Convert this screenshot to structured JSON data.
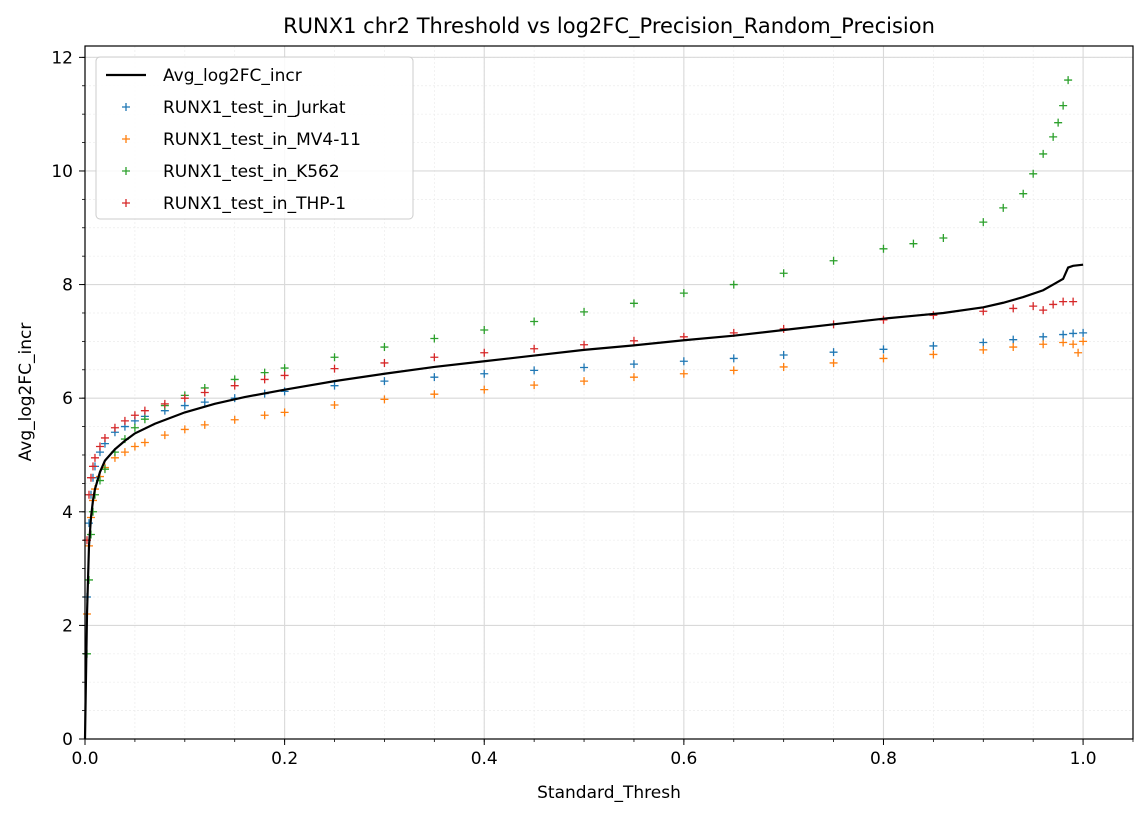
{
  "chart_data": {
    "type": "scatter",
    "title": "RUNX1 chr2 Threshold vs log2FC_Precision_Random_Precision",
    "xlabel": "Standard_Thresh",
    "ylabel": "Avg_log2FC_incr",
    "xlim": [
      0.0,
      1.05
    ],
    "ylim": [
      0,
      12.2
    ],
    "x_ticks": [
      0.0,
      0.2,
      0.4,
      0.6,
      0.8,
      1.0
    ],
    "x_tick_labels": [
      "0.0",
      "0.2",
      "0.4",
      "0.6",
      "0.8",
      "1.0"
    ],
    "y_ticks": [
      0,
      2,
      4,
      6,
      8,
      10,
      12
    ],
    "y_tick_labels": [
      "0",
      "2",
      "4",
      "6",
      "8",
      "10",
      "12"
    ],
    "grid": true,
    "minor_grid": true,
    "legend_position": "top-left",
    "line": {
      "name": "Avg_log2FC_incr",
      "color": "#000000",
      "x": [
        0.0,
        0.002,
        0.004,
        0.006,
        0.008,
        0.01,
        0.015,
        0.02,
        0.03,
        0.04,
        0.05,
        0.07,
        0.1,
        0.13,
        0.16,
        0.2,
        0.25,
        0.3,
        0.35,
        0.4,
        0.45,
        0.5,
        0.55,
        0.6,
        0.65,
        0.7,
        0.75,
        0.8,
        0.83,
        0.86,
        0.9,
        0.92,
        0.94,
        0.96,
        0.97,
        0.98,
        0.985,
        0.99,
        1.0
      ],
      "y": [
        0.0,
        2.2,
        3.4,
        3.9,
        4.2,
        4.4,
        4.7,
        4.9,
        5.1,
        5.25,
        5.38,
        5.55,
        5.75,
        5.9,
        6.02,
        6.15,
        6.3,
        6.43,
        6.55,
        6.65,
        6.75,
        6.85,
        6.93,
        7.02,
        7.1,
        7.2,
        7.3,
        7.4,
        7.45,
        7.5,
        7.6,
        7.68,
        7.78,
        7.9,
        8.0,
        8.1,
        8.3,
        8.33,
        8.35
      ]
    },
    "series": [
      {
        "name": "RUNX1_test_in_Jurkat",
        "color": "#1f77b4",
        "x": [
          0.002,
          0.004,
          0.006,
          0.008,
          0.01,
          0.015,
          0.02,
          0.03,
          0.04,
          0.05,
          0.06,
          0.08,
          0.1,
          0.12,
          0.15,
          0.18,
          0.2,
          0.25,
          0.3,
          0.35,
          0.4,
          0.45,
          0.5,
          0.55,
          0.6,
          0.65,
          0.7,
          0.75,
          0.8,
          0.85,
          0.9,
          0.93,
          0.96,
          0.98,
          0.99,
          1.0
        ],
        "y": [
          2.5,
          3.8,
          4.3,
          4.6,
          4.8,
          5.05,
          5.2,
          5.4,
          5.5,
          5.6,
          5.68,
          5.78,
          5.87,
          5.93,
          6.0,
          6.08,
          6.12,
          6.22,
          6.3,
          6.37,
          6.43,
          6.49,
          6.54,
          6.6,
          6.65,
          6.7,
          6.76,
          6.81,
          6.86,
          6.92,
          6.98,
          7.03,
          7.08,
          7.12,
          7.14,
          7.15
        ]
      },
      {
        "name": "RUNX1_test_in_MV4-11",
        "color": "#ff7f0e",
        "x": [
          0.002,
          0.004,
          0.006,
          0.008,
          0.01,
          0.015,
          0.02,
          0.03,
          0.04,
          0.05,
          0.06,
          0.08,
          0.1,
          0.12,
          0.15,
          0.18,
          0.2,
          0.25,
          0.3,
          0.35,
          0.4,
          0.45,
          0.5,
          0.55,
          0.6,
          0.65,
          0.7,
          0.75,
          0.8,
          0.85,
          0.9,
          0.93,
          0.96,
          0.98,
          0.99,
          0.995,
          1.0
        ],
        "y": [
          2.2,
          3.4,
          3.9,
          4.2,
          4.4,
          4.62,
          4.78,
          4.95,
          5.05,
          5.15,
          5.22,
          5.35,
          5.45,
          5.53,
          5.62,
          5.7,
          5.75,
          5.88,
          5.98,
          6.07,
          6.15,
          6.23,
          6.3,
          6.37,
          6.43,
          6.49,
          6.55,
          6.62,
          6.7,
          6.77,
          6.85,
          6.9,
          6.95,
          6.98,
          6.95,
          6.8,
          7.0
        ]
      },
      {
        "name": "RUNX1_test_in_K562",
        "color": "#2ca02c",
        "x": [
          0.002,
          0.004,
          0.006,
          0.008,
          0.01,
          0.015,
          0.02,
          0.03,
          0.04,
          0.05,
          0.06,
          0.08,
          0.1,
          0.12,
          0.15,
          0.18,
          0.2,
          0.25,
          0.3,
          0.35,
          0.4,
          0.45,
          0.5,
          0.55,
          0.6,
          0.65,
          0.7,
          0.75,
          0.8,
          0.83,
          0.86,
          0.9,
          0.92,
          0.94,
          0.95,
          0.96,
          0.97,
          0.975,
          0.98,
          0.985
        ],
        "y": [
          1.5,
          2.8,
          3.6,
          4.0,
          4.3,
          4.55,
          4.75,
          5.05,
          5.28,
          5.48,
          5.63,
          5.87,
          6.05,
          6.18,
          6.33,
          6.45,
          6.53,
          6.72,
          6.9,
          7.05,
          7.2,
          7.35,
          7.52,
          7.67,
          7.85,
          8.0,
          8.2,
          8.42,
          8.63,
          8.72,
          8.82,
          9.1,
          9.35,
          9.6,
          9.95,
          10.3,
          10.6,
          10.85,
          11.15,
          11.6
        ]
      },
      {
        "name": "RUNX1_test_in_THP-1",
        "color": "#d62728",
        "x": [
          0.002,
          0.004,
          0.006,
          0.008,
          0.01,
          0.015,
          0.02,
          0.03,
          0.04,
          0.05,
          0.06,
          0.08,
          0.1,
          0.12,
          0.15,
          0.18,
          0.2,
          0.25,
          0.3,
          0.35,
          0.4,
          0.45,
          0.5,
          0.55,
          0.6,
          0.65,
          0.7,
          0.75,
          0.8,
          0.85,
          0.9,
          0.93,
          0.95,
          0.96,
          0.97,
          0.98,
          0.99
        ],
        "y": [
          3.5,
          4.3,
          4.6,
          4.8,
          4.95,
          5.15,
          5.3,
          5.48,
          5.6,
          5.7,
          5.78,
          5.9,
          6.0,
          6.1,
          6.22,
          6.33,
          6.4,
          6.52,
          6.62,
          6.72,
          6.8,
          6.87,
          6.94,
          7.01,
          7.08,
          7.15,
          7.22,
          7.3,
          7.38,
          7.46,
          7.53,
          7.58,
          7.62,
          7.55,
          7.65,
          7.7,
          7.7
        ]
      }
    ]
  }
}
